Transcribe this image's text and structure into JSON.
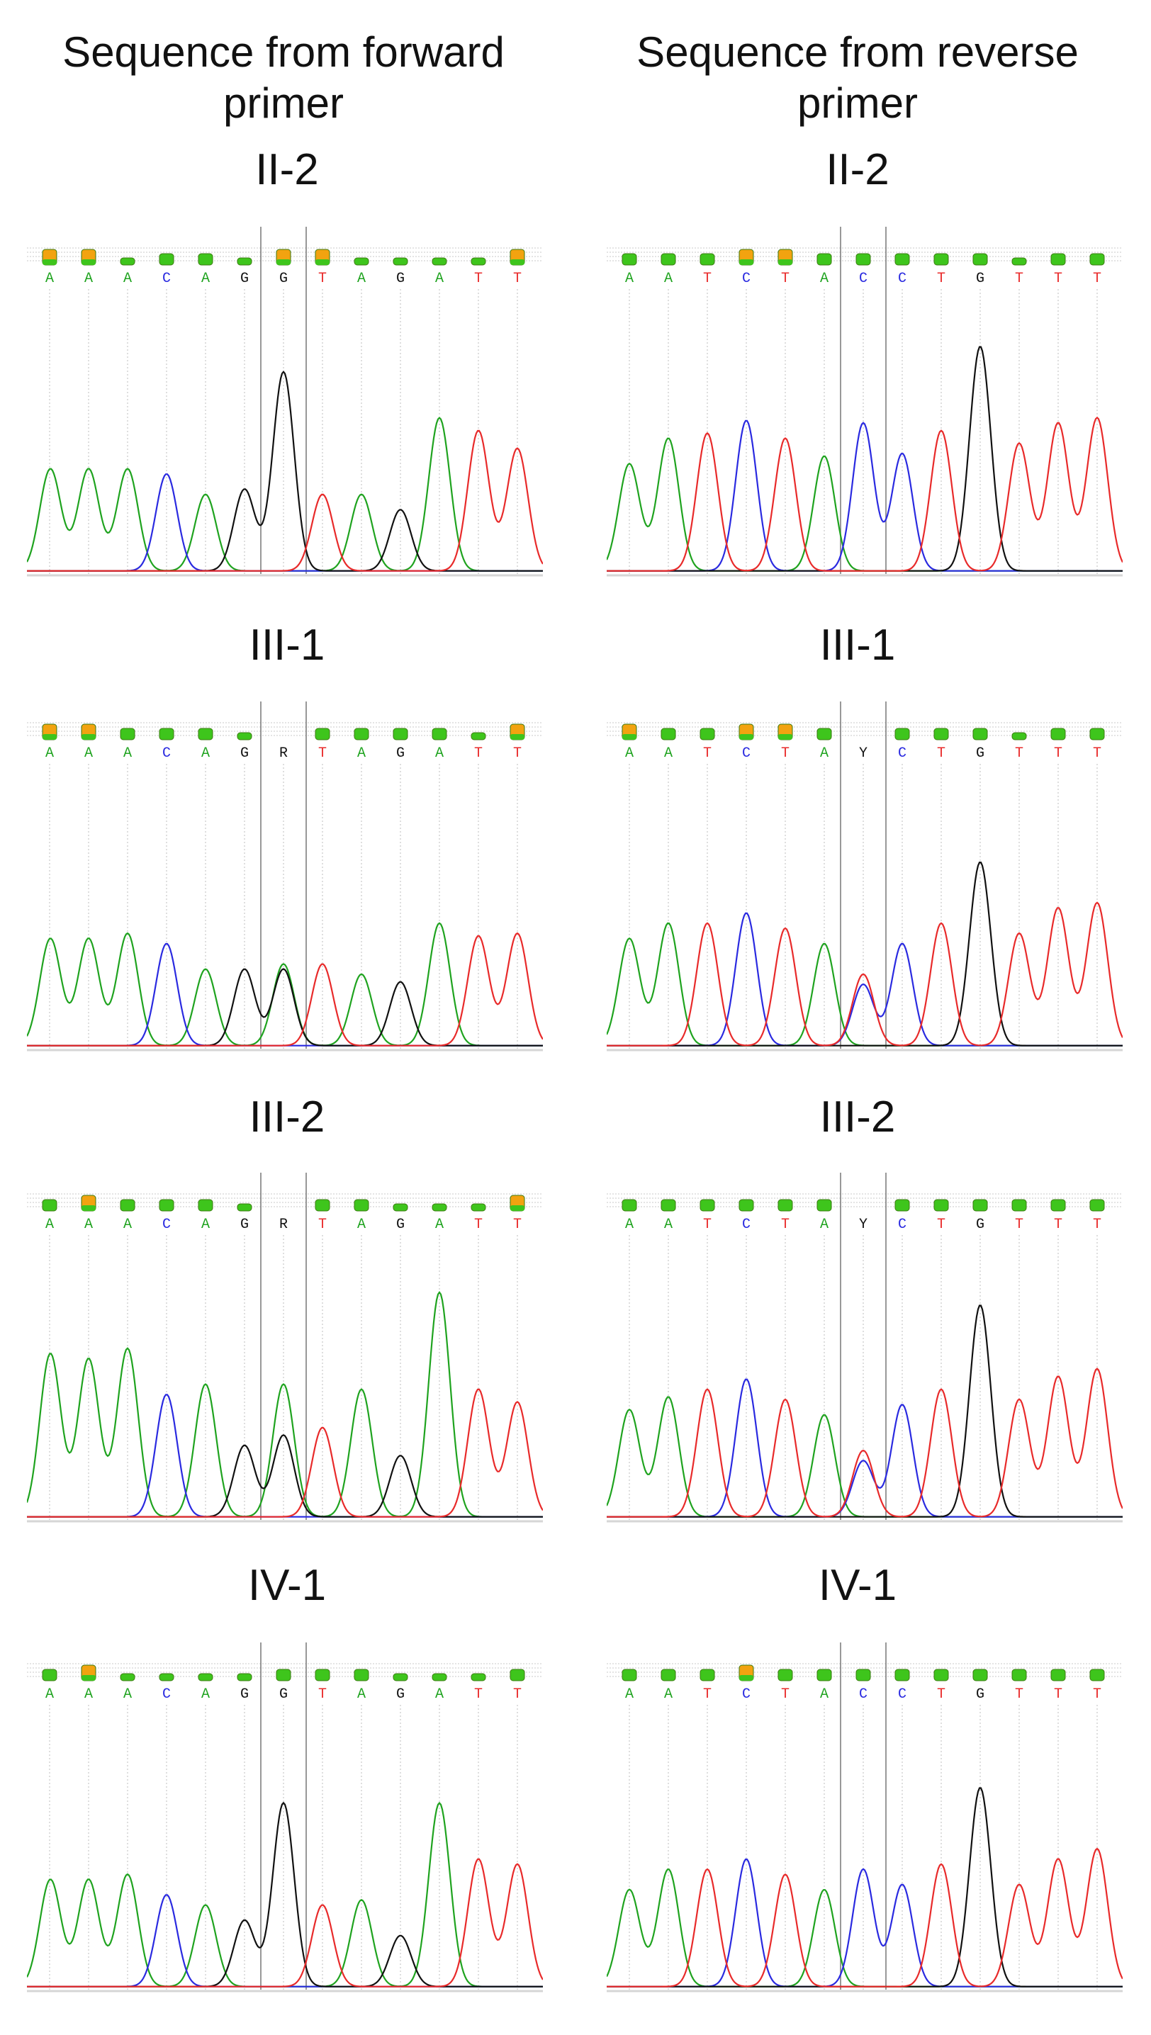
{
  "headers": {
    "left": "Sequence from forward\nprimer",
    "right": "Sequence from reverse\nprimer"
  },
  "colors": {
    "A": "#1fa31f",
    "C": "#2a2ae0",
    "G": "#111111",
    "T": "#e82a2a",
    "N": "#111111",
    "qual_fill": "#3ec51c",
    "qual_high": "#f2a310"
  },
  "quality_levels": {
    "high": "high",
    "mid": "mid",
    "low": "low"
  },
  "left_column": {
    "panels": [
      {
        "label": "II-2",
        "bases": [
          "A",
          "A",
          "A",
          "C",
          "A",
          "G",
          "G",
          "T",
          "A",
          "G",
          "A",
          "T",
          "T"
        ],
        "quality": [
          "high",
          "high",
          "low",
          "mid",
          "mid",
          "low",
          "high",
          "high",
          "low",
          "low",
          "low",
          "low",
          "high"
        ],
        "peaks": [
          {
            "base": "A",
            "pos": 0.02,
            "height": 0.4
          },
          {
            "base": "A",
            "pos": 1,
            "height": 0.4
          },
          {
            "base": "A",
            "pos": 2,
            "height": 0.4
          },
          {
            "base": "C",
            "pos": 3,
            "height": 0.38
          },
          {
            "base": "A",
            "pos": 4,
            "height": 0.3
          },
          {
            "base": "G",
            "pos": 5,
            "height": 0.32
          },
          {
            "base": "G",
            "pos": 6,
            "height": 0.78
          },
          {
            "base": "T",
            "pos": 7,
            "height": 0.3
          },
          {
            "base": "A",
            "pos": 8,
            "height": 0.3
          },
          {
            "base": "G",
            "pos": 9,
            "height": 0.24
          },
          {
            "base": "A",
            "pos": 10,
            "height": 0.6
          },
          {
            "base": "T",
            "pos": 11,
            "height": 0.55
          },
          {
            "base": "T",
            "pos": 12,
            "height": 0.48
          }
        ]
      },
      {
        "label": "III-1",
        "bases": [
          "A",
          "A",
          "A",
          "C",
          "A",
          "G",
          "R",
          "T",
          "A",
          "G",
          "A",
          "T",
          "T"
        ],
        "quality": [
          "high",
          "high",
          "mid",
          "mid",
          "mid",
          "low",
          "none",
          "mid",
          "mid",
          "mid",
          "mid",
          "low",
          "high"
        ],
        "peaks": [
          {
            "base": "A",
            "pos": 0.02,
            "height": 0.42
          },
          {
            "base": "A",
            "pos": 1,
            "height": 0.42
          },
          {
            "base": "A",
            "pos": 2,
            "height": 0.44
          },
          {
            "base": "C",
            "pos": 3,
            "height": 0.4
          },
          {
            "base": "A",
            "pos": 4,
            "height": 0.3
          },
          {
            "base": "G",
            "pos": 5,
            "height": 0.3
          },
          {
            "base": "A",
            "pos": 6,
            "height": 0.32
          },
          {
            "base": "G",
            "pos": 6,
            "height": 0.3
          },
          {
            "base": "T",
            "pos": 7,
            "height": 0.32
          },
          {
            "base": "A",
            "pos": 8,
            "height": 0.28
          },
          {
            "base": "G",
            "pos": 9,
            "height": 0.25
          },
          {
            "base": "A",
            "pos": 10,
            "height": 0.48
          },
          {
            "base": "T",
            "pos": 11,
            "height": 0.43
          },
          {
            "base": "T",
            "pos": 12,
            "height": 0.44
          }
        ]
      },
      {
        "label": "III-2",
        "bases": [
          "A",
          "A",
          "A",
          "C",
          "A",
          "G",
          "R",
          "T",
          "A",
          "G",
          "A",
          "T",
          "T"
        ],
        "quality": [
          "mid",
          "high",
          "mid",
          "mid",
          "mid",
          "low",
          "none",
          "mid",
          "mid",
          "low",
          "low",
          "low",
          "high"
        ],
        "peaks": [
          {
            "base": "A",
            "pos": 0.02,
            "height": 0.64
          },
          {
            "base": "A",
            "pos": 1,
            "height": 0.62
          },
          {
            "base": "A",
            "pos": 2,
            "height": 0.66
          },
          {
            "base": "C",
            "pos": 3,
            "height": 0.48
          },
          {
            "base": "A",
            "pos": 4,
            "height": 0.52
          },
          {
            "base": "G",
            "pos": 5,
            "height": 0.28
          },
          {
            "base": "A",
            "pos": 6,
            "height": 0.52
          },
          {
            "base": "G",
            "pos": 6,
            "height": 0.32
          },
          {
            "base": "T",
            "pos": 7,
            "height": 0.35
          },
          {
            "base": "A",
            "pos": 8,
            "height": 0.5
          },
          {
            "base": "G",
            "pos": 9,
            "height": 0.24
          },
          {
            "base": "A",
            "pos": 10,
            "height": 0.88
          },
          {
            "base": "T",
            "pos": 11,
            "height": 0.5
          },
          {
            "base": "T",
            "pos": 12,
            "height": 0.45
          }
        ]
      },
      {
        "label": "IV-1",
        "bases": [
          "A",
          "A",
          "A",
          "C",
          "A",
          "G",
          "G",
          "T",
          "A",
          "G",
          "A",
          "T",
          "T"
        ],
        "quality": [
          "mid",
          "high",
          "low",
          "low",
          "low",
          "low",
          "mid",
          "mid",
          "mid",
          "low",
          "low",
          "low",
          "mid"
        ],
        "peaks": [
          {
            "base": "A",
            "pos": 0.02,
            "height": 0.42
          },
          {
            "base": "A",
            "pos": 1,
            "height": 0.42
          },
          {
            "base": "A",
            "pos": 2,
            "height": 0.44
          },
          {
            "base": "C",
            "pos": 3,
            "height": 0.36
          },
          {
            "base": "A",
            "pos": 4,
            "height": 0.32
          },
          {
            "base": "G",
            "pos": 5,
            "height": 0.26
          },
          {
            "base": "G",
            "pos": 6,
            "height": 0.72
          },
          {
            "base": "T",
            "pos": 7,
            "height": 0.32
          },
          {
            "base": "A",
            "pos": 8,
            "height": 0.34
          },
          {
            "base": "G",
            "pos": 9,
            "height": 0.2
          },
          {
            "base": "A",
            "pos": 10,
            "height": 0.72
          },
          {
            "base": "T",
            "pos": 11,
            "height": 0.5
          },
          {
            "base": "T",
            "pos": 12,
            "height": 0.48
          }
        ]
      }
    ]
  },
  "right_column": {
    "panels": [
      {
        "label": "II-2",
        "bases": [
          "A",
          "A",
          "T",
          "C",
          "T",
          "A",
          "C",
          "C",
          "T",
          "G",
          "T",
          "T",
          "T"
        ],
        "quality": [
          "mid",
          "mid",
          "mid",
          "high",
          "high",
          "mid",
          "mid",
          "mid",
          "mid",
          "mid",
          "low",
          "mid",
          "mid"
        ],
        "peaks": [
          {
            "base": "A",
            "pos": 0,
            "height": 0.42
          },
          {
            "base": "A",
            "pos": 1,
            "height": 0.52
          },
          {
            "base": "T",
            "pos": 2,
            "height": 0.54
          },
          {
            "base": "C",
            "pos": 3,
            "height": 0.59
          },
          {
            "base": "T",
            "pos": 4,
            "height": 0.52
          },
          {
            "base": "A",
            "pos": 5,
            "height": 0.45
          },
          {
            "base": "C",
            "pos": 6,
            "height": 0.58
          },
          {
            "base": "C",
            "pos": 7,
            "height": 0.46
          },
          {
            "base": "T",
            "pos": 8,
            "height": 0.55
          },
          {
            "base": "G",
            "pos": 9,
            "height": 0.88
          },
          {
            "base": "T",
            "pos": 10,
            "height": 0.5
          },
          {
            "base": "T",
            "pos": 11,
            "height": 0.58
          },
          {
            "base": "T",
            "pos": 12,
            "height": 0.6
          }
        ]
      },
      {
        "label": "III-1",
        "bases": [
          "A",
          "A",
          "T",
          "C",
          "T",
          "A",
          "Y",
          "C",
          "T",
          "G",
          "T",
          "T",
          "T"
        ],
        "quality": [
          "high",
          "mid",
          "mid",
          "high",
          "high",
          "mid",
          "none",
          "mid",
          "mid",
          "mid",
          "low",
          "mid",
          "mid"
        ],
        "peaks": [
          {
            "base": "A",
            "pos": 0,
            "height": 0.42
          },
          {
            "base": "A",
            "pos": 1,
            "height": 0.48
          },
          {
            "base": "T",
            "pos": 2,
            "height": 0.48
          },
          {
            "base": "C",
            "pos": 3,
            "height": 0.52
          },
          {
            "base": "T",
            "pos": 4,
            "height": 0.46
          },
          {
            "base": "A",
            "pos": 5,
            "height": 0.4
          },
          {
            "base": "C",
            "pos": 6,
            "height": 0.24
          },
          {
            "base": "T",
            "pos": 6,
            "height": 0.28
          },
          {
            "base": "C",
            "pos": 7,
            "height": 0.4
          },
          {
            "base": "T",
            "pos": 8,
            "height": 0.48
          },
          {
            "base": "G",
            "pos": 9,
            "height": 0.72
          },
          {
            "base": "T",
            "pos": 10,
            "height": 0.44
          },
          {
            "base": "T",
            "pos": 11,
            "height": 0.54
          },
          {
            "base": "T",
            "pos": 12,
            "height": 0.56
          }
        ]
      },
      {
        "label": "III-2",
        "bases": [
          "A",
          "A",
          "T",
          "C",
          "T",
          "A",
          "Y",
          "C",
          "T",
          "G",
          "T",
          "T",
          "T"
        ],
        "quality": [
          "mid",
          "mid",
          "mid",
          "mid",
          "mid",
          "mid",
          "none",
          "mid",
          "mid",
          "mid",
          "mid",
          "mid",
          "mid"
        ],
        "peaks": [
          {
            "base": "A",
            "pos": 0,
            "height": 0.42
          },
          {
            "base": "A",
            "pos": 1,
            "height": 0.47
          },
          {
            "base": "T",
            "pos": 2,
            "height": 0.5
          },
          {
            "base": "C",
            "pos": 3,
            "height": 0.54
          },
          {
            "base": "T",
            "pos": 4,
            "height": 0.46
          },
          {
            "base": "A",
            "pos": 5,
            "height": 0.4
          },
          {
            "base": "C",
            "pos": 6,
            "height": 0.22
          },
          {
            "base": "T",
            "pos": 6,
            "height": 0.26
          },
          {
            "base": "C",
            "pos": 7,
            "height": 0.44
          },
          {
            "base": "T",
            "pos": 8,
            "height": 0.5
          },
          {
            "base": "G",
            "pos": 9,
            "height": 0.83
          },
          {
            "base": "T",
            "pos": 10,
            "height": 0.46
          },
          {
            "base": "T",
            "pos": 11,
            "height": 0.55
          },
          {
            "base": "T",
            "pos": 12,
            "height": 0.58
          }
        ]
      },
      {
        "label": "IV-1",
        "bases": [
          "A",
          "A",
          "T",
          "C",
          "T",
          "A",
          "C",
          "C",
          "T",
          "G",
          "T",
          "T",
          "T"
        ],
        "quality": [
          "mid",
          "mid",
          "mid",
          "high",
          "mid",
          "mid",
          "mid",
          "mid",
          "mid",
          "mid",
          "mid",
          "mid",
          "mid"
        ],
        "peaks": [
          {
            "base": "A",
            "pos": 0,
            "height": 0.38
          },
          {
            "base": "A",
            "pos": 1,
            "height": 0.46
          },
          {
            "base": "T",
            "pos": 2,
            "height": 0.46
          },
          {
            "base": "C",
            "pos": 3,
            "height": 0.5
          },
          {
            "base": "T",
            "pos": 4,
            "height": 0.44
          },
          {
            "base": "A",
            "pos": 5,
            "height": 0.38
          },
          {
            "base": "C",
            "pos": 6,
            "height": 0.46
          },
          {
            "base": "C",
            "pos": 7,
            "height": 0.4
          },
          {
            "base": "T",
            "pos": 8,
            "height": 0.48
          },
          {
            "base": "G",
            "pos": 9,
            "height": 0.78
          },
          {
            "base": "T",
            "pos": 10,
            "height": 0.4
          },
          {
            "base": "T",
            "pos": 11,
            "height": 0.5
          },
          {
            "base": "T",
            "pos": 12,
            "height": 0.54
          }
        ]
      }
    ]
  }
}
